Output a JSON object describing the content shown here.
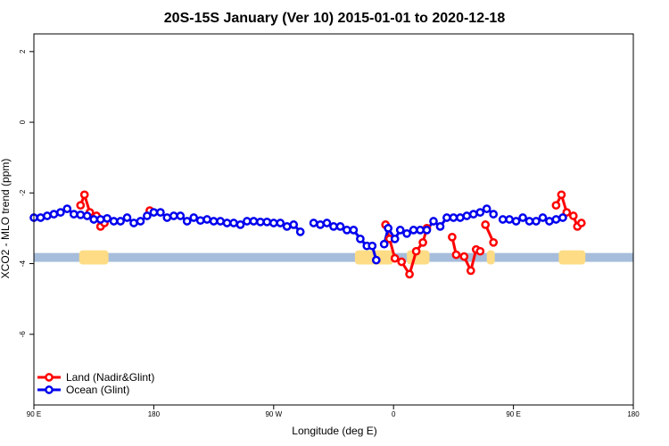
{
  "chart_data": {
    "type": "line",
    "title": "20S-15S January (Ver 10)   2015-01-01 to 2020-12-18",
    "xlabel": "Longitude (deg E)",
    "ylabel": "XCO2 - MLO trend (ppm)",
    "xlim": [
      90,
      540
    ],
    "ylim": [
      -8,
      2.5
    ],
    "xticks": [
      {
        "value": 90,
        "label": "90 E"
      },
      {
        "value": 180,
        "label": "180"
      },
      {
        "value": 270,
        "label": "90 W"
      },
      {
        "value": 360,
        "label": "0"
      },
      {
        "value": 450,
        "label": "90 E"
      },
      {
        "value": 540,
        "label": "180"
      }
    ],
    "yticks": [
      {
        "value": -6,
        "label": "-6"
      },
      {
        "value": -4,
        "label": "-4"
      },
      {
        "value": -2,
        "label": "-2"
      },
      {
        "value": 0,
        "label": "0"
      },
      {
        "value": 2,
        "label": "2"
      }
    ],
    "colors": {
      "land": "#ff0000",
      "ocean": "#0000ee",
      "ocean_strip": "#a6bddb",
      "land_strip": "#fddc85"
    },
    "surface_strip": {
      "y_range": [
        -3.95,
        -3.7
      ],
      "land_ranges": [
        [
          124,
          146
        ],
        [
          331,
          360
        ],
        [
          370,
          387
        ],
        [
          430,
          436
        ],
        [
          484,
          504
        ]
      ]
    },
    "series": [
      {
        "name": "Land (Nadir&Glint)",
        "color": "#ff0000",
        "segments": [
          [
            [
              125,
              -2.35
            ],
            [
              128,
              -2.05
            ],
            [
              132,
              -2.55
            ],
            [
              137,
              -2.65
            ],
            [
              140,
              -2.95
            ],
            [
              143,
              -2.85
            ]
          ],
          [
            [
              177,
              -2.5
            ]
          ],
          [
            [
              354,
              -2.9
            ],
            [
              357,
              -3.3
            ],
            [
              361,
              -3.85
            ],
            [
              366,
              -3.95
            ],
            [
              372,
              -4.3
            ],
            [
              377,
              -3.65
            ],
            [
              382,
              -3.4
            ],
            [
              385,
              -3.0
            ]
          ],
          [
            [
              404,
              -3.25
            ],
            [
              407,
              -3.75
            ],
            [
              413,
              -3.8
            ],
            [
              418,
              -4.2
            ],
            [
              422,
              -3.6
            ],
            [
              425,
              -3.65
            ]
          ],
          [
            [
              429,
              -2.9
            ],
            [
              435,
              -3.4
            ]
          ],
          [
            [
              482,
              -2.35
            ],
            [
              486,
              -2.05
            ],
            [
              490,
              -2.55
            ],
            [
              495,
              -2.65
            ],
            [
              498,
              -2.95
            ],
            [
              501,
              -2.85
            ]
          ]
        ]
      },
      {
        "name": "Ocean (Glint)",
        "color": "#0000ee",
        "segments": [
          [
            [
              90,
              -2.7
            ],
            [
              95,
              -2.7
            ],
            [
              100,
              -2.65
            ],
            [
              105,
              -2.6
            ],
            [
              110,
              -2.55
            ],
            [
              115,
              -2.45
            ],
            [
              120,
              -2.6
            ],
            [
              125,
              -2.62
            ],
            [
              130,
              -2.65
            ],
            [
              135,
              -2.75
            ],
            [
              140,
              -2.75
            ],
            [
              145,
              -2.72
            ],
            [
              150,
              -2.8
            ],
            [
              155,
              -2.8
            ],
            [
              160,
              -2.7
            ],
            [
              165,
              -2.85
            ],
            [
              170,
              -2.8
            ],
            [
              175,
              -2.65
            ],
            [
              180,
              -2.55
            ],
            [
              185,
              -2.55
            ],
            [
              190,
              -2.7
            ],
            [
              195,
              -2.65
            ],
            [
              200,
              -2.65
            ],
            [
              205,
              -2.8
            ],
            [
              210,
              -2.7
            ],
            [
              215,
              -2.78
            ],
            [
              220,
              -2.75
            ],
            [
              225,
              -2.8
            ],
            [
              230,
              -2.8
            ],
            [
              235,
              -2.85
            ],
            [
              240,
              -2.85
            ],
            [
              245,
              -2.9
            ],
            [
              250,
              -2.8
            ],
            [
              255,
              -2.8
            ],
            [
              260,
              -2.82
            ],
            [
              265,
              -2.82
            ],
            [
              270,
              -2.85
            ],
            [
              275,
              -2.85
            ],
            [
              280,
              -2.95
            ],
            [
              285,
              -2.9
            ],
            [
              290,
              -3.1
            ]
          ],
          [
            [
              300,
              -2.85
            ],
            [
              305,
              -2.9
            ],
            [
              310,
              -2.85
            ],
            [
              315,
              -2.95
            ],
            [
              320,
              -2.95
            ],
            [
              325,
              -3.05
            ],
            [
              330,
              -3.05
            ],
            [
              335,
              -3.3
            ],
            [
              340,
              -3.5
            ],
            [
              344,
              -3.5
            ],
            [
              347,
              -3.9
            ]
          ],
          [
            [
              353,
              -3.45
            ],
            [
              356,
              -3.0
            ],
            [
              361,
              -3.3
            ],
            [
              365,
              -3.05
            ],
            [
              370,
              -3.15
            ],
            [
              375,
              -3.05
            ],
            [
              380,
              -3.05
            ],
            [
              385,
              -3.05
            ],
            [
              390,
              -2.8
            ],
            [
              395,
              -2.95
            ],
            [
              400,
              -2.7
            ],
            [
              405,
              -2.7
            ],
            [
              410,
              -2.7
            ],
            [
              415,
              -2.65
            ],
            [
              420,
              -2.6
            ],
            [
              425,
              -2.55
            ],
            [
              430,
              -2.45
            ],
            [
              435,
              -2.6
            ]
          ],
          [
            [
              442,
              -2.75
            ],
            [
              447,
              -2.75
            ],
            [
              452,
              -2.8
            ],
            [
              457,
              -2.7
            ],
            [
              462,
              -2.8
            ],
            [
              467,
              -2.8
            ],
            [
              472,
              -2.7
            ],
            [
              477,
              -2.8
            ],
            [
              482,
              -2.75
            ],
            [
              487,
              -2.7
            ]
          ]
        ]
      }
    ],
    "legend": {
      "position": "bottom-left",
      "entries": [
        {
          "label": "Land (Nadir&Glint)",
          "color": "#ff0000"
        },
        {
          "label": "Ocean (Glint)",
          "color": "#0000ee"
        }
      ]
    }
  }
}
